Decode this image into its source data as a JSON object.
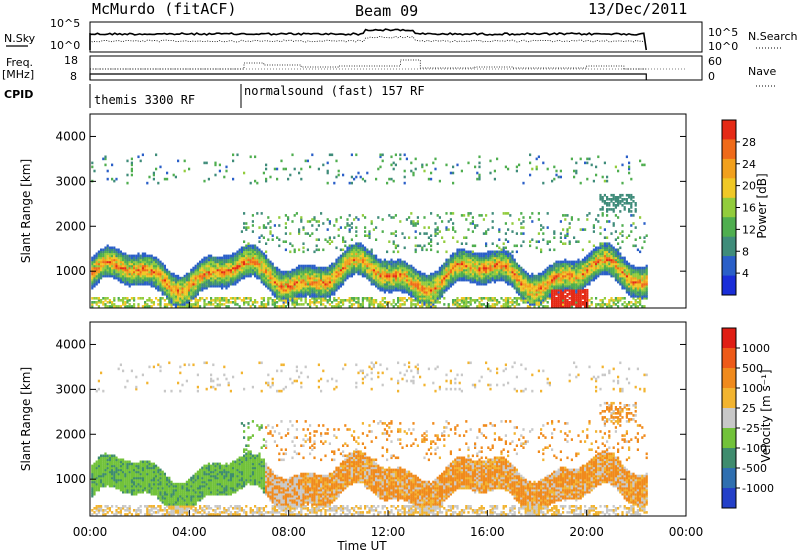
{
  "header": {
    "station": "McMurdo (fitACF)",
    "beam": "Beam 09",
    "date": "13/Dec/2011"
  },
  "top_strip": {
    "left_label": "N.Sky",
    "right_label": "N.Search",
    "left_ticks": [
      "10^5",
      "10^0"
    ],
    "right_ticks": [
      "10^5",
      "10^0"
    ]
  },
  "freq_strip": {
    "left_label_1": "Freq.",
    "left_label_2": "[MHz]",
    "left_ticks": [
      "18",
      "8"
    ],
    "right_ticks": [
      "60",
      "0"
    ],
    "right_label": "Nave"
  },
  "cpid": {
    "label": "CPID",
    "segments": [
      {
        "text": "themis 3300 RF",
        "start_hour": 0.0
      },
      {
        "text": "normalsound (fast) 157 RF",
        "start_hour": 6.0
      }
    ]
  },
  "chart_data": [
    {
      "type": "heatmap",
      "name": "power",
      "ylabel": "Slant Range [km]",
      "xlabel": "",
      "ylim": [
        180,
        4500
      ],
      "xlim_hours": [
        0,
        24
      ],
      "yticks": [
        1000,
        2000,
        3000,
        4000
      ],
      "colorbar": {
        "label": "Power [dB]",
        "ticks": [
          "28",
          "24",
          "20",
          "16",
          "12",
          "8",
          "4"
        ],
        "colors": [
          "#1a2ed8",
          "#2a5fc8",
          "#3f8c7a",
          "#4fae4f",
          "#92cc3c",
          "#f0c826",
          "#f2a01d",
          "#ef6a1a",
          "#e52a16"
        ]
      },
      "data_end_hour": 22.4
    },
    {
      "type": "heatmap",
      "name": "velocity",
      "ylabel": "Slant Range [km]",
      "xlabel": "Time UT",
      "ylim": [
        180,
        4500
      ],
      "xlim_hours": [
        0,
        24
      ],
      "yticks": [
        1000,
        2000,
        3000,
        4000
      ],
      "xticks": [
        "00:00",
        "04:00",
        "08:00",
        "12:00",
        "16:00",
        "20:00",
        "00:00"
      ],
      "colorbar": {
        "label": "Velocity [m s⁻¹]",
        "ticks": [
          "1000",
          "500",
          "100",
          "25",
          "-25",
          "-100",
          "-500",
          "-1000"
        ],
        "colors": [
          "#2440c8",
          "#2f6fb0",
          "#3f8c6e",
          "#72c23a",
          "#c8c8c8",
          "#f2b430",
          "#f08a1c",
          "#ee5a18",
          "#e01e14"
        ]
      },
      "data_end_hour": 22.4
    }
  ]
}
